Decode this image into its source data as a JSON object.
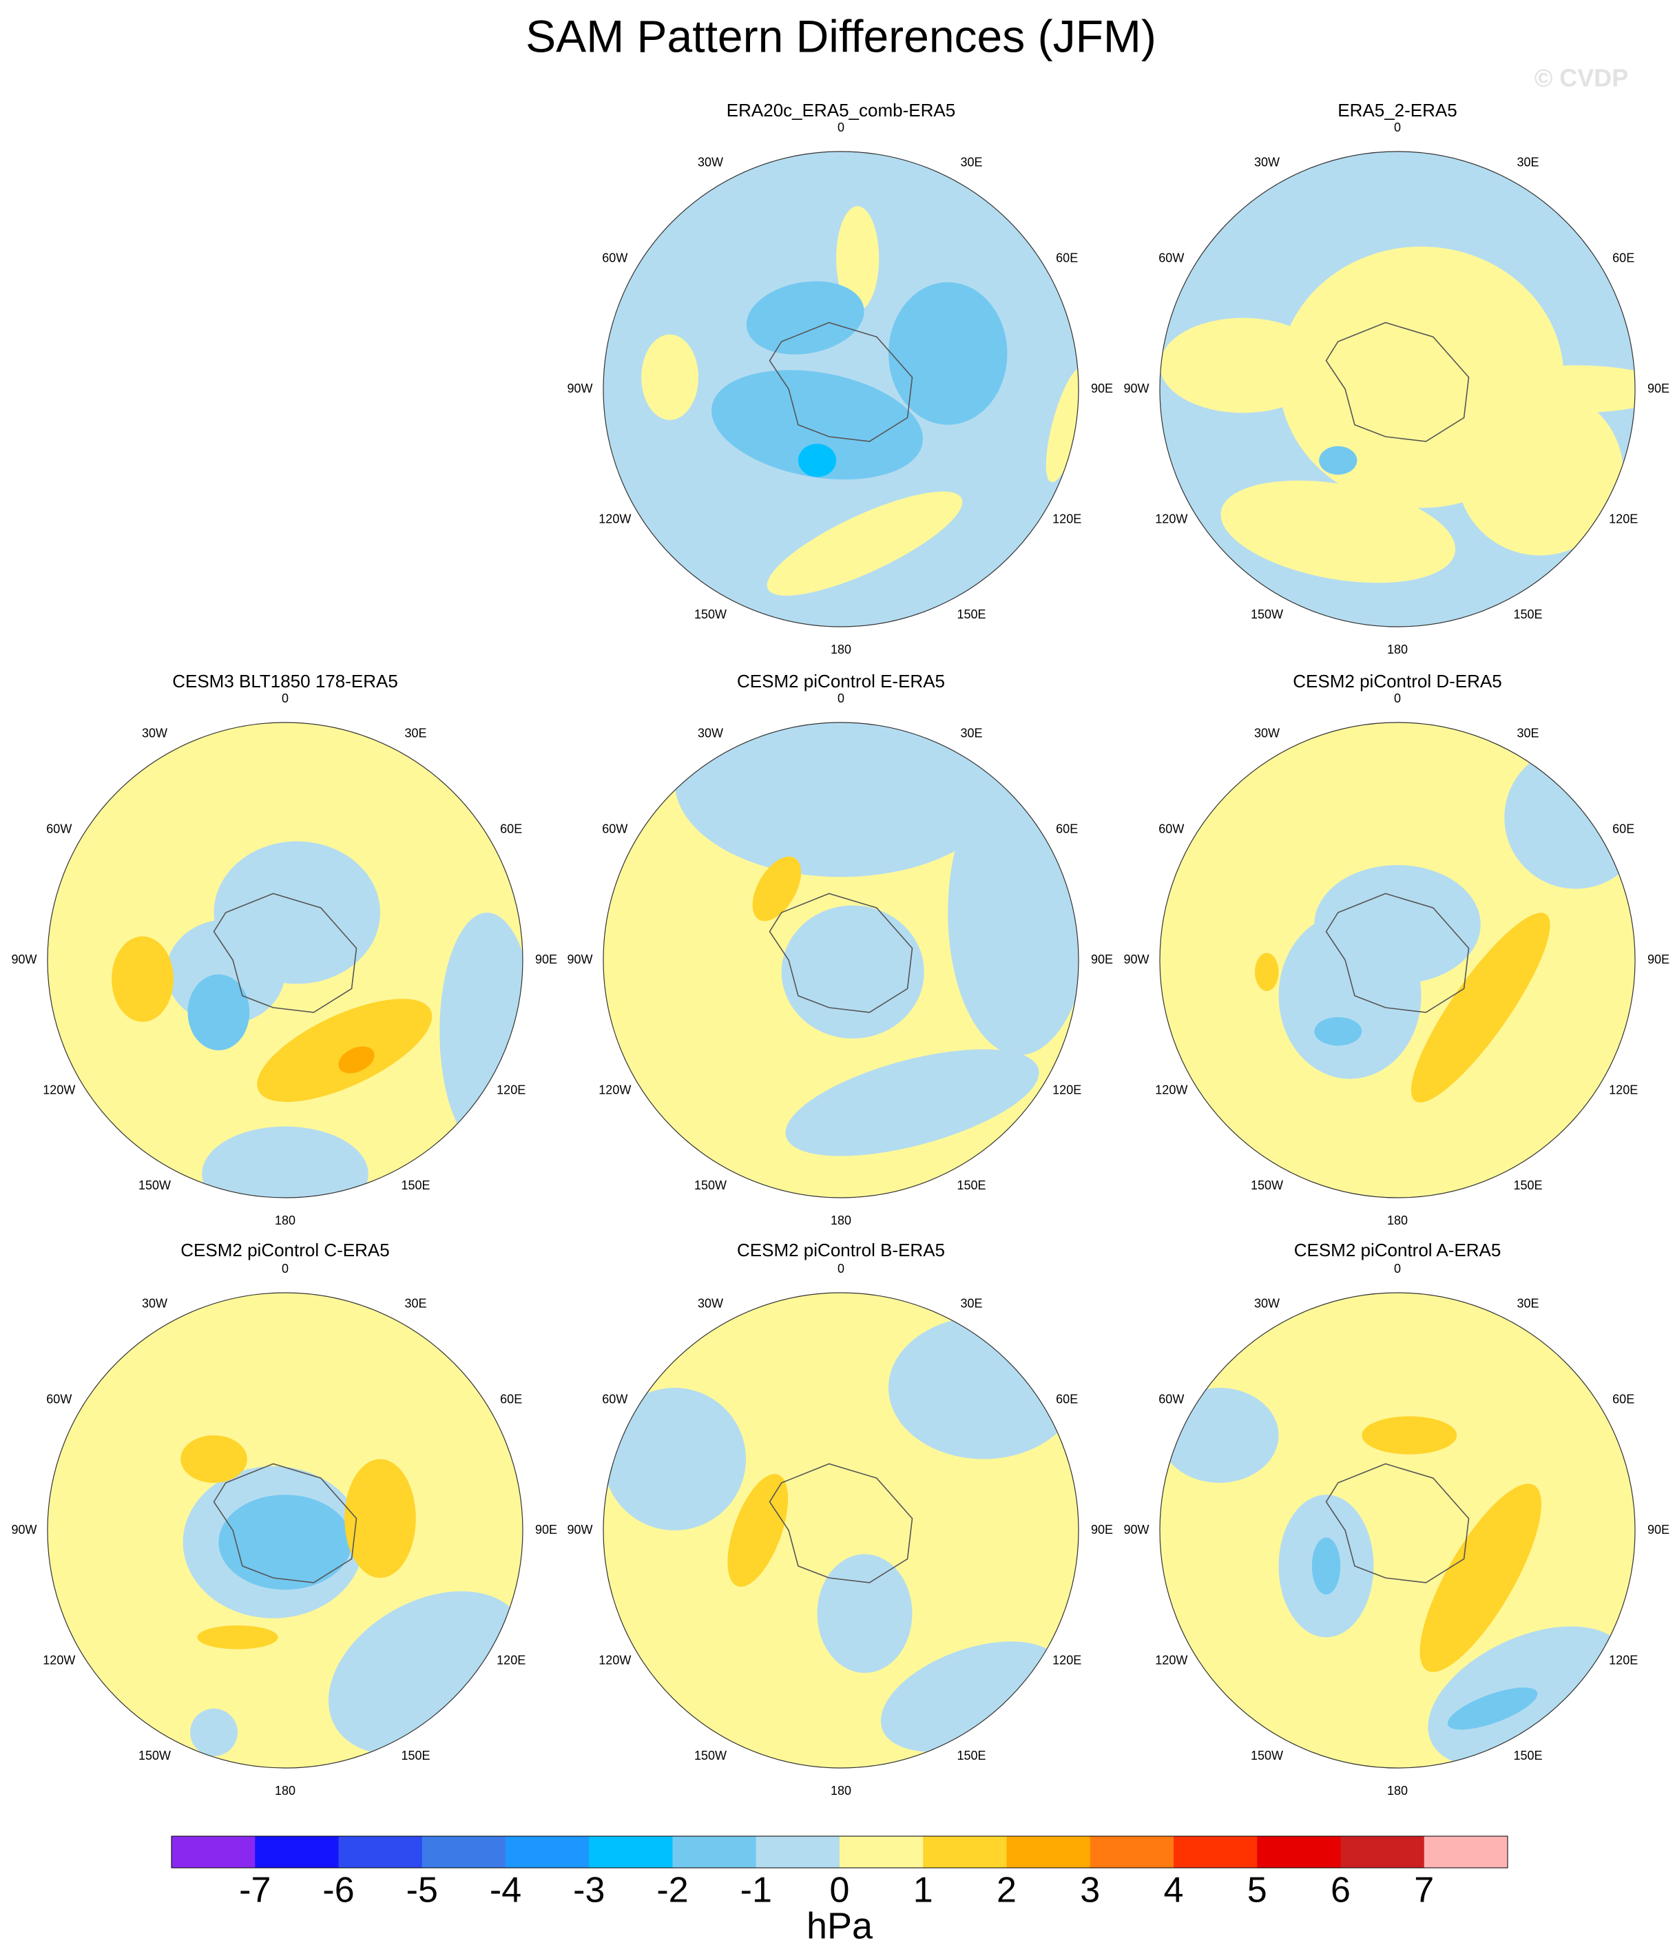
{
  "title": "SAM Pattern Differences (JFM)",
  "watermark": "© CVDP",
  "lon_labels": [
    "0",
    "30E",
    "60E",
    "90E",
    "120E",
    "150E",
    "180",
    "150W",
    "120W",
    "90W",
    "60W",
    "30W"
  ],
  "panels": [
    {
      "title": "ERA20c_ERA5_comb-ERA5"
    },
    {
      "title": "ERA5_2-ERA5"
    },
    {
      "title": "CESM3 BLT1850 178-ERA5"
    },
    {
      "title": "CESM2 piControl E-ERA5"
    },
    {
      "title": "CESM2 piControl D-ERA5"
    },
    {
      "title": "CESM2 piControl C-ERA5"
    },
    {
      "title": "CESM2 piControl B-ERA5"
    },
    {
      "title": "CESM2 piControl A-ERA5"
    }
  ],
  "colorbar": {
    "colors": [
      "#8a28f0",
      "#1414ff",
      "#2d4bf0",
      "#3c7ae8",
      "#1e96ff",
      "#00c0ff",
      "#73c8f0",
      "#b4dcf0",
      "#fff899",
      "#ffd42b",
      "#ffaa00",
      "#ff7a10",
      "#ff3300",
      "#e60000",
      "#cc1f1f",
      "#ffb4b4"
    ],
    "ticks": [
      -7,
      -6,
      -5,
      -4,
      -3,
      -2,
      -1,
      0,
      1,
      2,
      3,
      4,
      5,
      6,
      7
    ],
    "label": "hPa"
  }
}
